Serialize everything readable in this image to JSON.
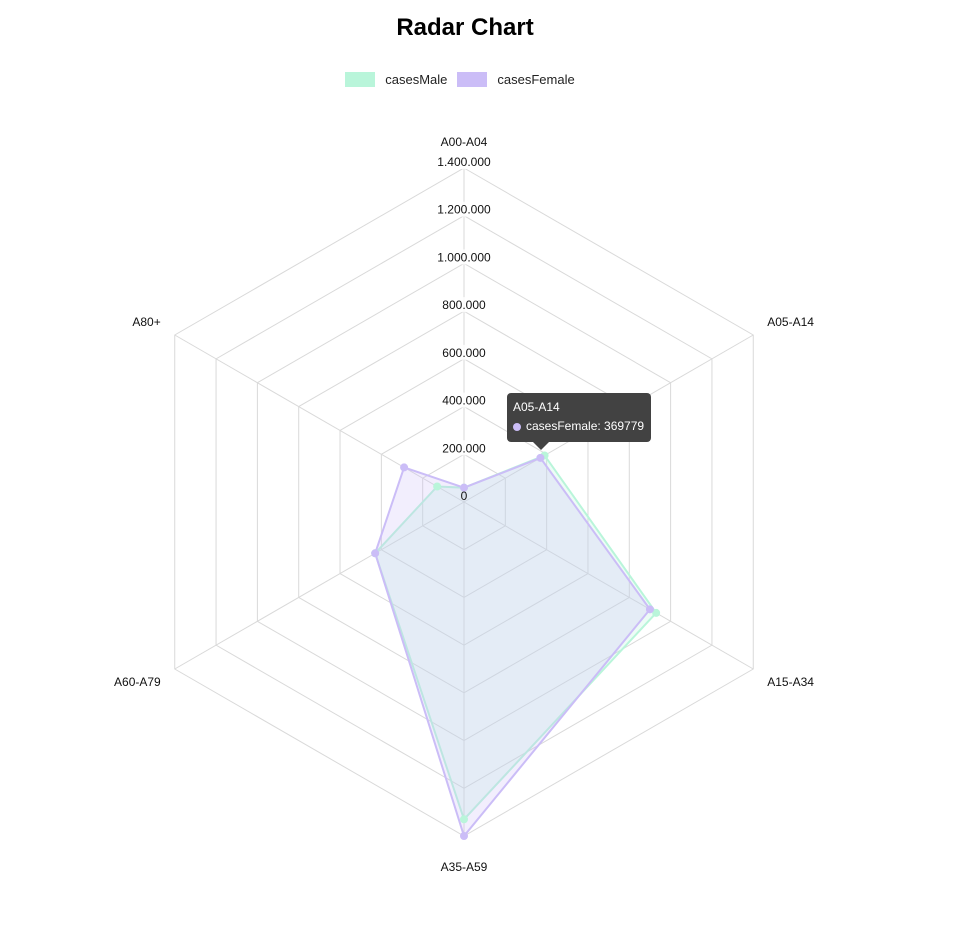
{
  "chart_data": {
    "type": "radar",
    "title": "Radar Chart",
    "categories": [
      "A00-A04",
      "A05-A14",
      "A15-A34",
      "A35-A59",
      "A60-A79",
      "A80+"
    ],
    "ticks": [
      "0",
      "200.000",
      "400.000",
      "600.000",
      "800.000",
      "1.000.000",
      "1.200.000",
      "1.400.000"
    ],
    "rlim": [
      0,
      1400000
    ],
    "grid": true,
    "legend_position": "top",
    "series": [
      {
        "name": "casesMale",
        "color": "#b9f5da",
        "values": [
          60000,
          390000,
          930000,
          1330000,
          430000,
          130000
        ]
      },
      {
        "name": "casesFemale",
        "color": "#cbbdf7",
        "values": [
          60000,
          369779,
          900000,
          1400000,
          430000,
          290000
        ]
      }
    ]
  },
  "tooltip": {
    "title": "A05-A14",
    "text": "casesFemale: 369779",
    "color": "#cbbdf7"
  }
}
